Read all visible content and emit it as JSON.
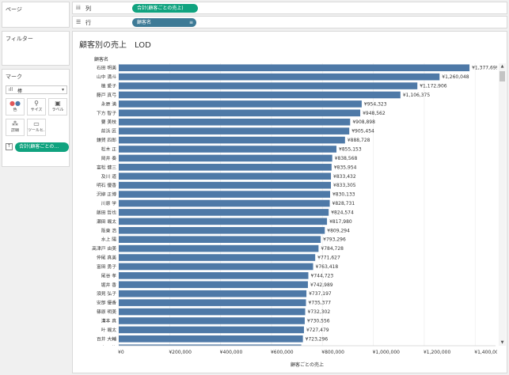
{
  "panels": {
    "pages_title": "ページ",
    "filters_title": "フィルター",
    "marks_title": "マーク",
    "mark_type": "棒",
    "mark_buttons": [
      {
        "label": "色",
        "icon": "color-icon"
      },
      {
        "label": "サイズ",
        "icon": "size-icon"
      },
      {
        "label": "ラベル",
        "icon": "label-icon"
      },
      {
        "label": "詳細",
        "icon": "detail-icon"
      },
      {
        "label": "ツールヒ…",
        "icon": "tooltip-icon"
      }
    ],
    "marks_pill": "合計(顧客ごとの…"
  },
  "shelves": {
    "columns_label": "列",
    "columns_pill": "合計(顧客ごとの売上)",
    "rows_label": "行",
    "rows_pill": "顧客名"
  },
  "viz": {
    "title": "顧客別の売上　LOD",
    "row_header": "顧客名"
  },
  "chart_data": {
    "type": "bar",
    "orientation": "horizontal",
    "title": "顧客別の売上　LOD",
    "xlabel": "顧客ごとの売上",
    "ylabel": "顧客名",
    "xlim": [
      0,
      1480000
    ],
    "x_ticks": [
      "¥0",
      "¥200,000",
      "¥400,000",
      "¥600,000",
      "¥800,000",
      "¥1,000,000",
      "¥1,200,000",
      "¥1,400,000"
    ],
    "x_tick_values": [
      0,
      200000,
      400000,
      600000,
      800000,
      1000000,
      1200000,
      1400000
    ],
    "bar_color": "#4e79a7",
    "grid": "vertical",
    "categories": [
      "石田 明美",
      "山中 満斗",
      "植 愛子",
      "藤戸 真弓",
      "永原 満",
      "下方 智子",
      "要 美枝",
      "前浜 匠",
      "鎌賀 四郎",
      "松木 正",
      "岡井 奏",
      "富松 健三",
      "及川 道",
      "明石 優香",
      "沢柳 正博",
      "川原 学",
      "飯田 哲也",
      "瀬田 颯太",
      "阪東 浩",
      "水上 陽",
      "高津戸 由美",
      "仲尾 真美",
      "富田 勇子",
      "尾谷 孝",
      "堀井 香",
      "須見 弘子",
      "安部 優香",
      "篠原 明美",
      "溝本 真",
      "叶 颯太",
      "百井 大輔",
      "東田 修"
    ],
    "values": [
      1377699,
      1260048,
      1172906,
      1106375,
      954323,
      948562,
      908898,
      905454,
      888728,
      855153,
      838568,
      835954,
      833432,
      833305,
      830133,
      828731,
      824574,
      817980,
      809294,
      793296,
      784728,
      771627,
      763418,
      744723,
      742989,
      737197,
      735377,
      732302,
      730556,
      727479,
      723296,
      717061
    ],
    "value_labels": [
      "¥1,377,699",
      "¥1,260,048",
      "¥1,172,906",
      "¥1,106,375",
      "¥954,323",
      "¥948,562",
      "¥908,898",
      "¥905,454",
      "¥888,728",
      "¥855,153",
      "¥838,568",
      "¥835,954",
      "¥833,432",
      "¥833,305",
      "¥830,133",
      "¥828,731",
      "¥824,574",
      "¥817,980",
      "¥809,294",
      "¥793,296",
      "¥784,728",
      "¥771,627",
      "¥763,418",
      "¥744,723",
      "¥742,989",
      "¥737,197",
      "¥735,377",
      "¥732,302",
      "¥730,556",
      "¥727,479",
      "¥723,296",
      "¥717,061"
    ]
  }
}
